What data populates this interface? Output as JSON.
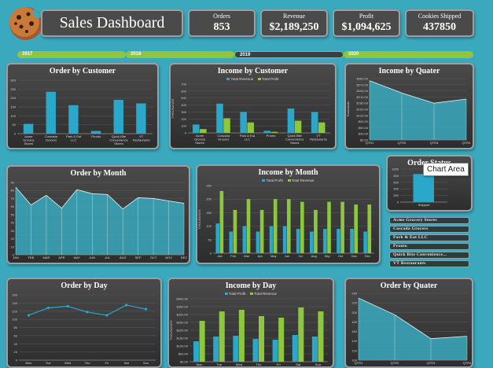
{
  "header": {
    "title": "Sales Dashboard",
    "kpis": [
      {
        "label": "Orders",
        "value": "853"
      },
      {
        "label": "Revenue",
        "value": "$2,189,250"
      },
      {
        "label": "Profit",
        "value": "$1,094,625"
      },
      {
        "label": "Cookies Shipped",
        "value": "437850"
      }
    ]
  },
  "timeline": [
    "2017",
    "2018",
    "2019",
    "2020"
  ],
  "timeline_selected": "2019",
  "tooltip": "Chart Area",
  "slicers": [
    "Acme Grocery Stores",
    "Coscada Grocers",
    "Park & Eat LLC",
    "Pronto",
    "Quick Bite Convenience...",
    "VT Restaurants"
  ],
  "colors": {
    "teal": "#3aa9bd",
    "bar_blue": "#2aa7c9",
    "bar_green": "#8dc63f",
    "panel": "#3a3a3a"
  },
  "chart_data": [
    {
      "type": "bar",
      "title": "Order by Customer",
      "categories": [
        "Acme Grocery Stores",
        "Coscada Grocers",
        "Park & Eat LLC",
        "Pronto",
        "Quick Bite Convenience Stores",
        "VT Restaurants"
      ],
      "values": [
        55,
        235,
        160,
        15,
        190,
        170
      ],
      "ylim": [
        0,
        300
      ],
      "yticks": [
        "0",
        "50",
        "100",
        "150",
        "200",
        "250",
        "300"
      ]
    },
    {
      "type": "bar",
      "title": "Income by Customer",
      "ylabel": "THOUSANDS",
      "categories": [
        "Acme Grocery Stores",
        "Coscada Grocers",
        "Park & Eat LLC",
        "Pronto",
        "Quick Bite Convenience Stores",
        "VT Restaurants"
      ],
      "series": [
        {
          "name": "Total Revenue",
          "values": [
            120,
            420,
            300,
            30,
            350,
            300
          ]
        },
        {
          "name": "Total Profit",
          "values": [
            55,
            210,
            150,
            15,
            175,
            150
          ]
        }
      ],
      "ylim": [
        0,
        700
      ],
      "yticks": [
        "0",
        "100",
        "200",
        "300",
        "400",
        "500",
        "600",
        "700"
      ]
    },
    {
      "type": "area",
      "title": "Income by Quater",
      "ylabel": "Thousands",
      "categories": [
        "QTR1",
        "QTR2",
        "QTR3",
        "QTR4"
      ],
      "values": [
        290,
        230,
        180,
        200
      ],
      "ylim": [
        0,
        300
      ],
      "yticks": [
        "$0.00",
        "$30.00",
        "$60.00",
        "$90.00",
        "$120.00",
        "$150.00",
        "$180.00",
        "$210.00",
        "$240.00",
        "$270.00",
        "$300.00"
      ]
    },
    {
      "type": "area",
      "title": "Order by Month",
      "categories": [
        "JAN",
        "FEB",
        "MAR",
        "APR",
        "MAY",
        "JUN",
        "JUL",
        "AUG",
        "SEP",
        "OCT",
        "NOV",
        "DEC"
      ],
      "values": [
        84,
        62,
        74,
        58,
        81,
        76,
        75,
        57,
        71,
        70,
        67,
        64
      ],
      "ylim": [
        0,
        90
      ],
      "yticks": [
        "0",
        "10",
        "20",
        "30",
        "40",
        "50",
        "60",
        "70",
        "80",
        "90"
      ]
    },
    {
      "type": "bar",
      "title": "Income by Month",
      "ylabel": "THOUSANDS",
      "categories": [
        "Jan",
        "Feb",
        "Mar",
        "Apr",
        "May",
        "Jun",
        "Jul",
        "Aug",
        "Sep",
        "Oct",
        "Nov",
        "Dec"
      ],
      "series": [
        {
          "name": "Total Profit",
          "values": [
            110,
            80,
            100,
            80,
            100,
            100,
            90,
            80,
            90,
            90,
            90,
            80
          ]
        },
        {
          "name": "Total Revenue",
          "values": [
            230,
            160,
            200,
            160,
            200,
            200,
            190,
            160,
            190,
            190,
            180,
            180
          ]
        }
      ],
      "ylim": [
        0,
        250
      ],
      "yticks": [
        "0",
        "50",
        "100",
        "150",
        "200",
        "250"
      ]
    },
    {
      "type": "bar",
      "title": "Order Status",
      "categories": [
        "Shipped"
      ],
      "values": [
        850
      ],
      "ylim": [
        0,
        1000
      ],
      "yticks": [
        "0",
        "200",
        "400",
        "600",
        "800",
        "1000"
      ]
    },
    {
      "type": "line",
      "title": "Order by Day",
      "categories": [
        "Mon",
        "Tue",
        "Wed",
        "Thu",
        "Fri",
        "Sat",
        "Sun"
      ],
      "values": [
        110,
        128,
        132,
        118,
        110,
        135,
        125
      ],
      "ylim": [
        0,
        160
      ],
      "yticks": [
        "0",
        "20",
        "40",
        "60",
        "80",
        "100",
        "120",
        "140",
        "160"
      ]
    },
    {
      "type": "bar",
      "title": "Income by Day",
      "ylabel": "THOUSANDS",
      "categories": [
        "Mon",
        "Tue",
        "Wed",
        "Thu",
        "Fri",
        "Sat",
        "Sun"
      ],
      "series": [
        {
          "name": "Total Profit",
          "values": [
            130,
            160,
            165,
            145,
            140,
            170,
            160
          ]
        },
        {
          "name": "Total Revenue",
          "values": [
            260,
            320,
            330,
            290,
            280,
            345,
            320
          ]
        }
      ],
      "ylim": [
        0,
        400
      ],
      "yticks": [
        "$0.00",
        "$50.00",
        "$100.00",
        "$150.00",
        "$200.00",
        "$250.00",
        "$300.00",
        "$350.00",
        "$400.00"
      ]
    },
    {
      "type": "area",
      "title": "Order by Quater",
      "categories": [
        "QTR1",
        "QTR2",
        "QTR3",
        "QTR4"
      ],
      "values": [
        230,
        195,
        145,
        150
      ],
      "ylim": [
        100,
        240
      ],
      "yticks": [
        "100",
        "120",
        "140",
        "160",
        "180",
        "200",
        "220",
        "240"
      ]
    }
  ]
}
